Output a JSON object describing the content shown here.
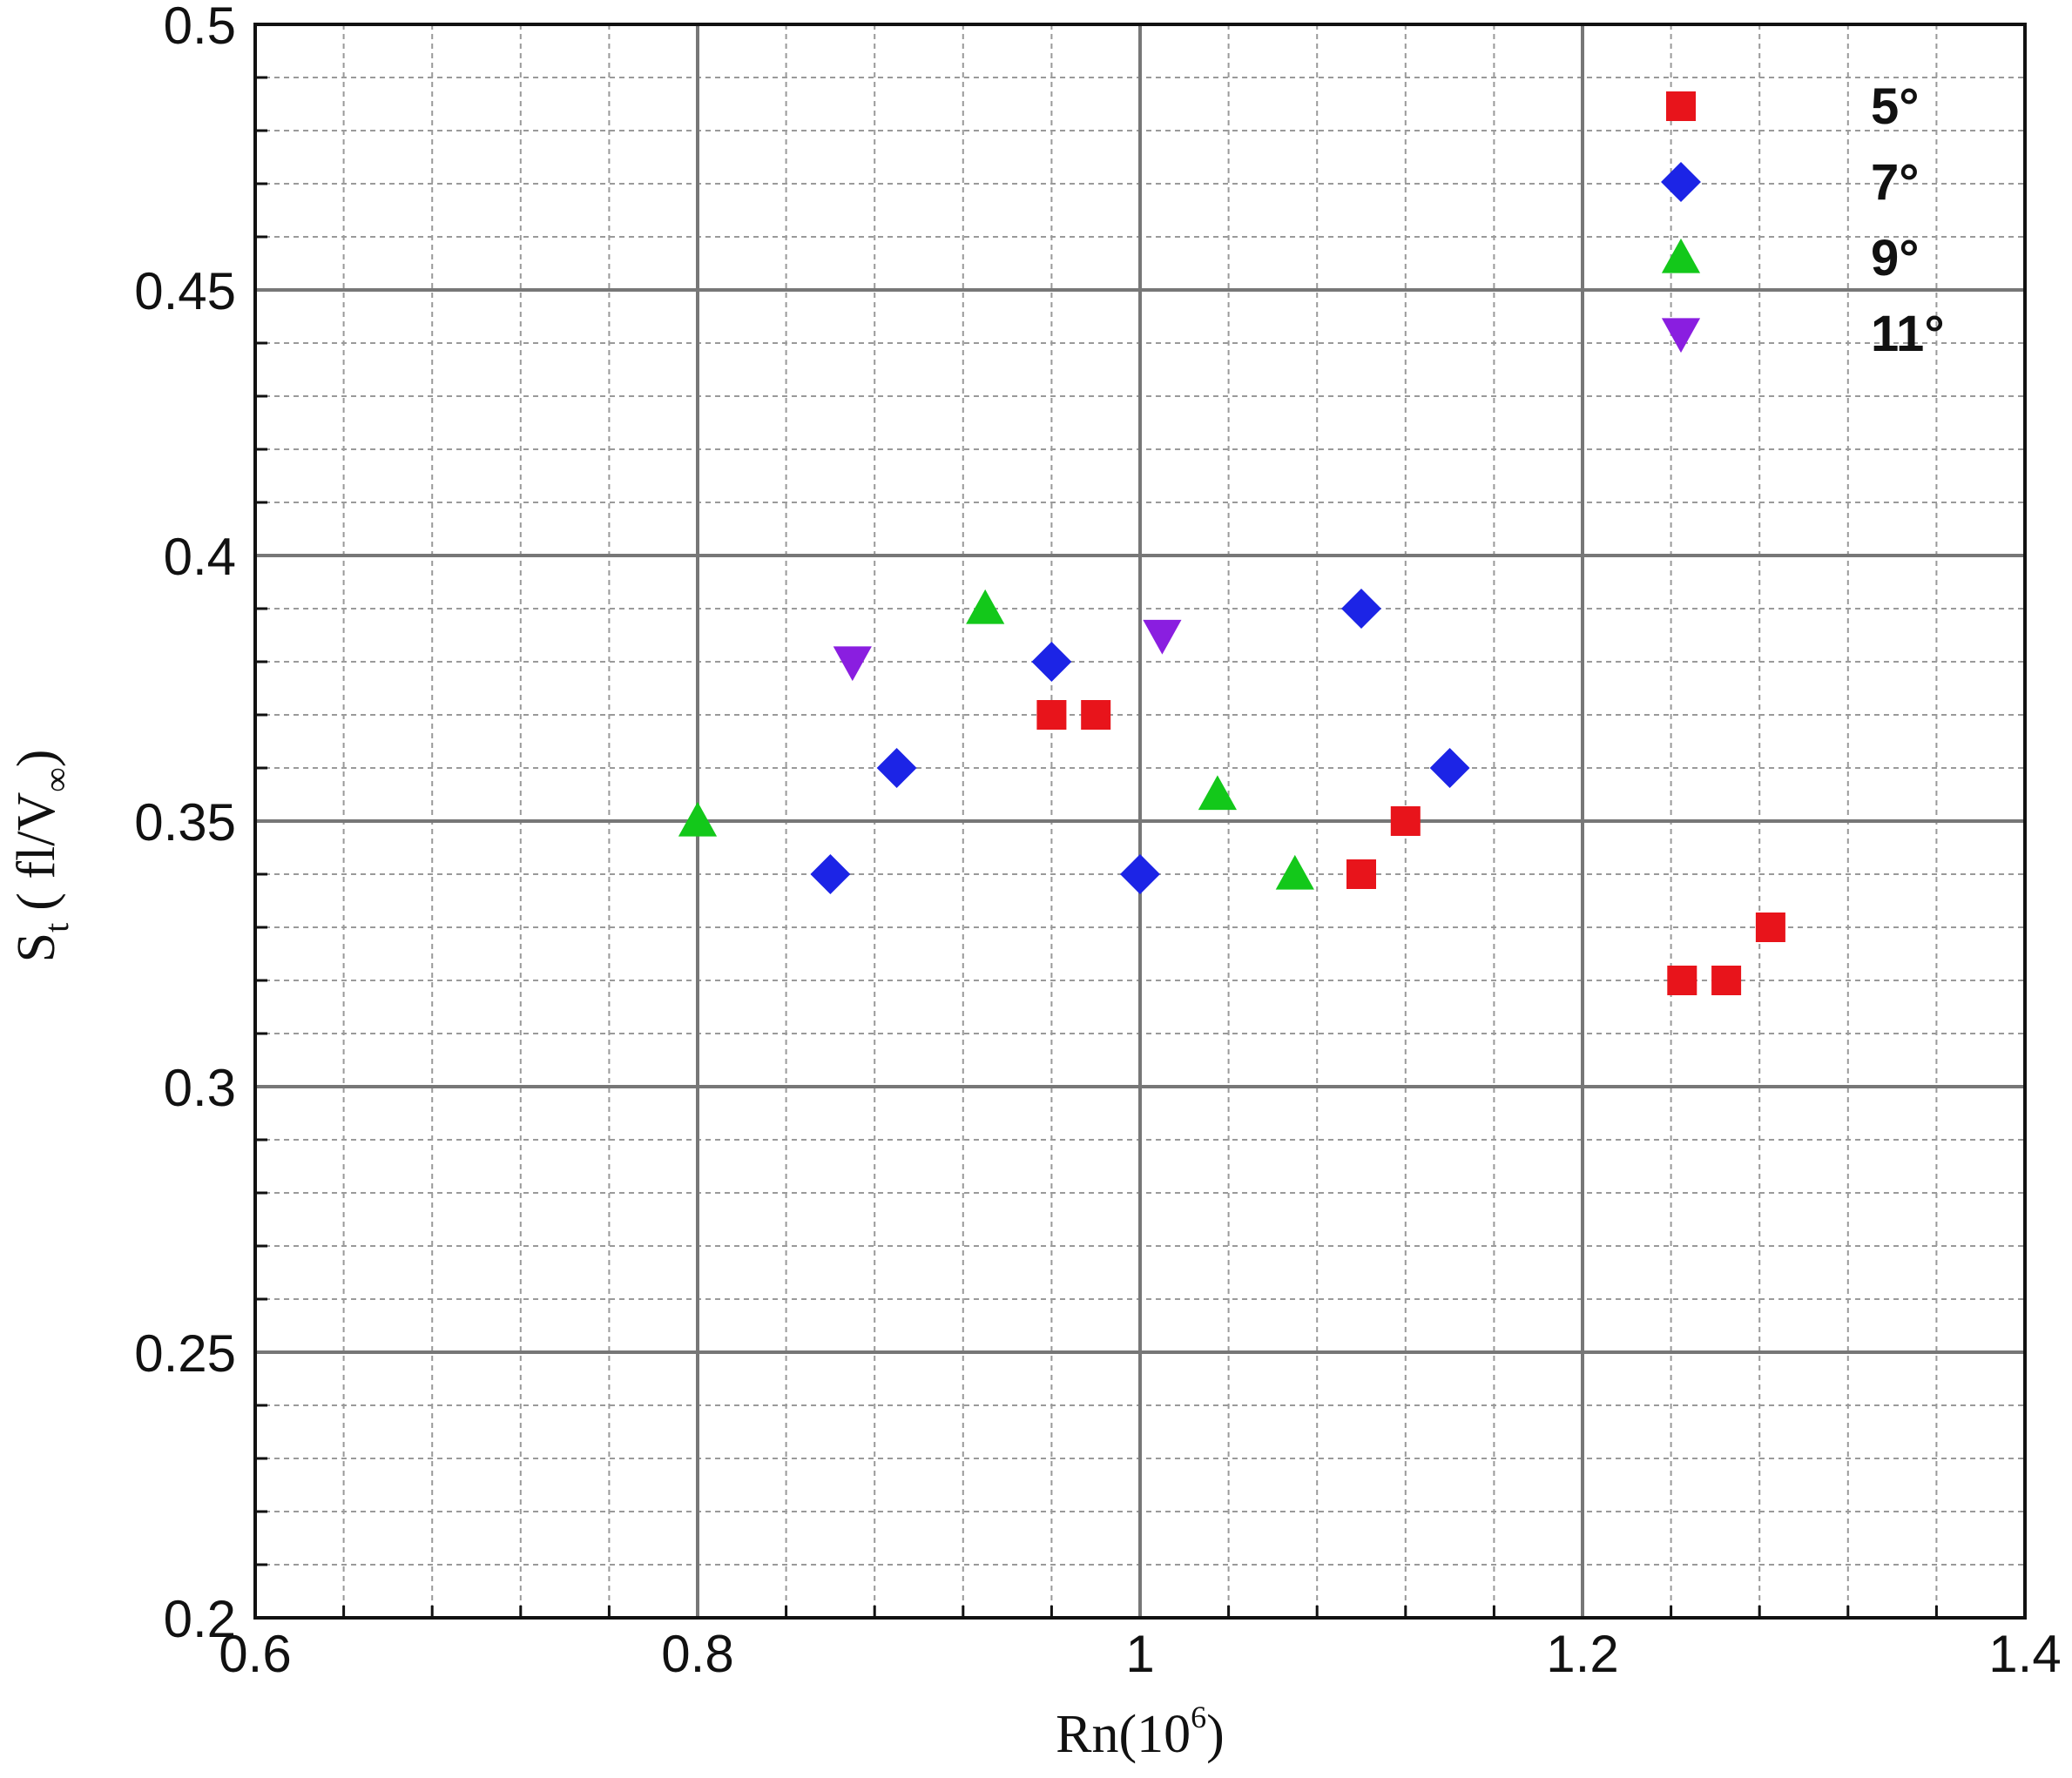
{
  "chart_data": {
    "type": "scatter",
    "title": "",
    "xlabel": "Rn(10",
    "xlabel_sup": "6",
    "xlabel_close": ")",
    "ylabel_main": "S",
    "ylabel_sub": "t",
    "ylabel_rest": "( fl/V",
    "ylabel_sub2": "∞",
    "ylabel_close": ")",
    "xlim": [
      0.6,
      1.4
    ],
    "ylim": [
      0.2,
      0.5
    ],
    "x_ticks": [
      "0.6",
      "0.8",
      "1",
      "1.2",
      "1.4"
    ],
    "y_ticks": [
      "0.2",
      "0.25",
      "0.3",
      "0.35",
      "0.4",
      "0.45",
      "0.5"
    ],
    "grid": true,
    "legend_position": "top-right",
    "series": [
      {
        "name": "5°",
        "marker": "square",
        "color": "#e8141b",
        "points": [
          [
            0.96,
            0.37
          ],
          [
            0.98,
            0.37
          ],
          [
            1.1,
            0.34
          ],
          [
            1.12,
            0.35
          ],
          [
            1.245,
            0.32
          ],
          [
            1.265,
            0.32
          ],
          [
            1.285,
            0.33
          ]
        ]
      },
      {
        "name": "7°",
        "marker": "diamond",
        "color": "#1c24e6",
        "points": [
          [
            0.86,
            0.34
          ],
          [
            0.89,
            0.36
          ],
          [
            0.96,
            0.38
          ],
          [
            1.0,
            0.34
          ],
          [
            1.1,
            0.39
          ],
          [
            1.14,
            0.36
          ]
        ]
      },
      {
        "name": "9°",
        "marker": "triangle-up",
        "color": "#13c81a",
        "points": [
          [
            0.8,
            0.35
          ],
          [
            0.93,
            0.39
          ],
          [
            1.035,
            0.355
          ],
          [
            1.07,
            0.34
          ]
        ]
      },
      {
        "name": "11°",
        "marker": "triangle-down",
        "color": "#8a1ee0",
        "points": [
          [
            0.87,
            0.38
          ],
          [
            1.01,
            0.385
          ]
        ]
      }
    ]
  }
}
